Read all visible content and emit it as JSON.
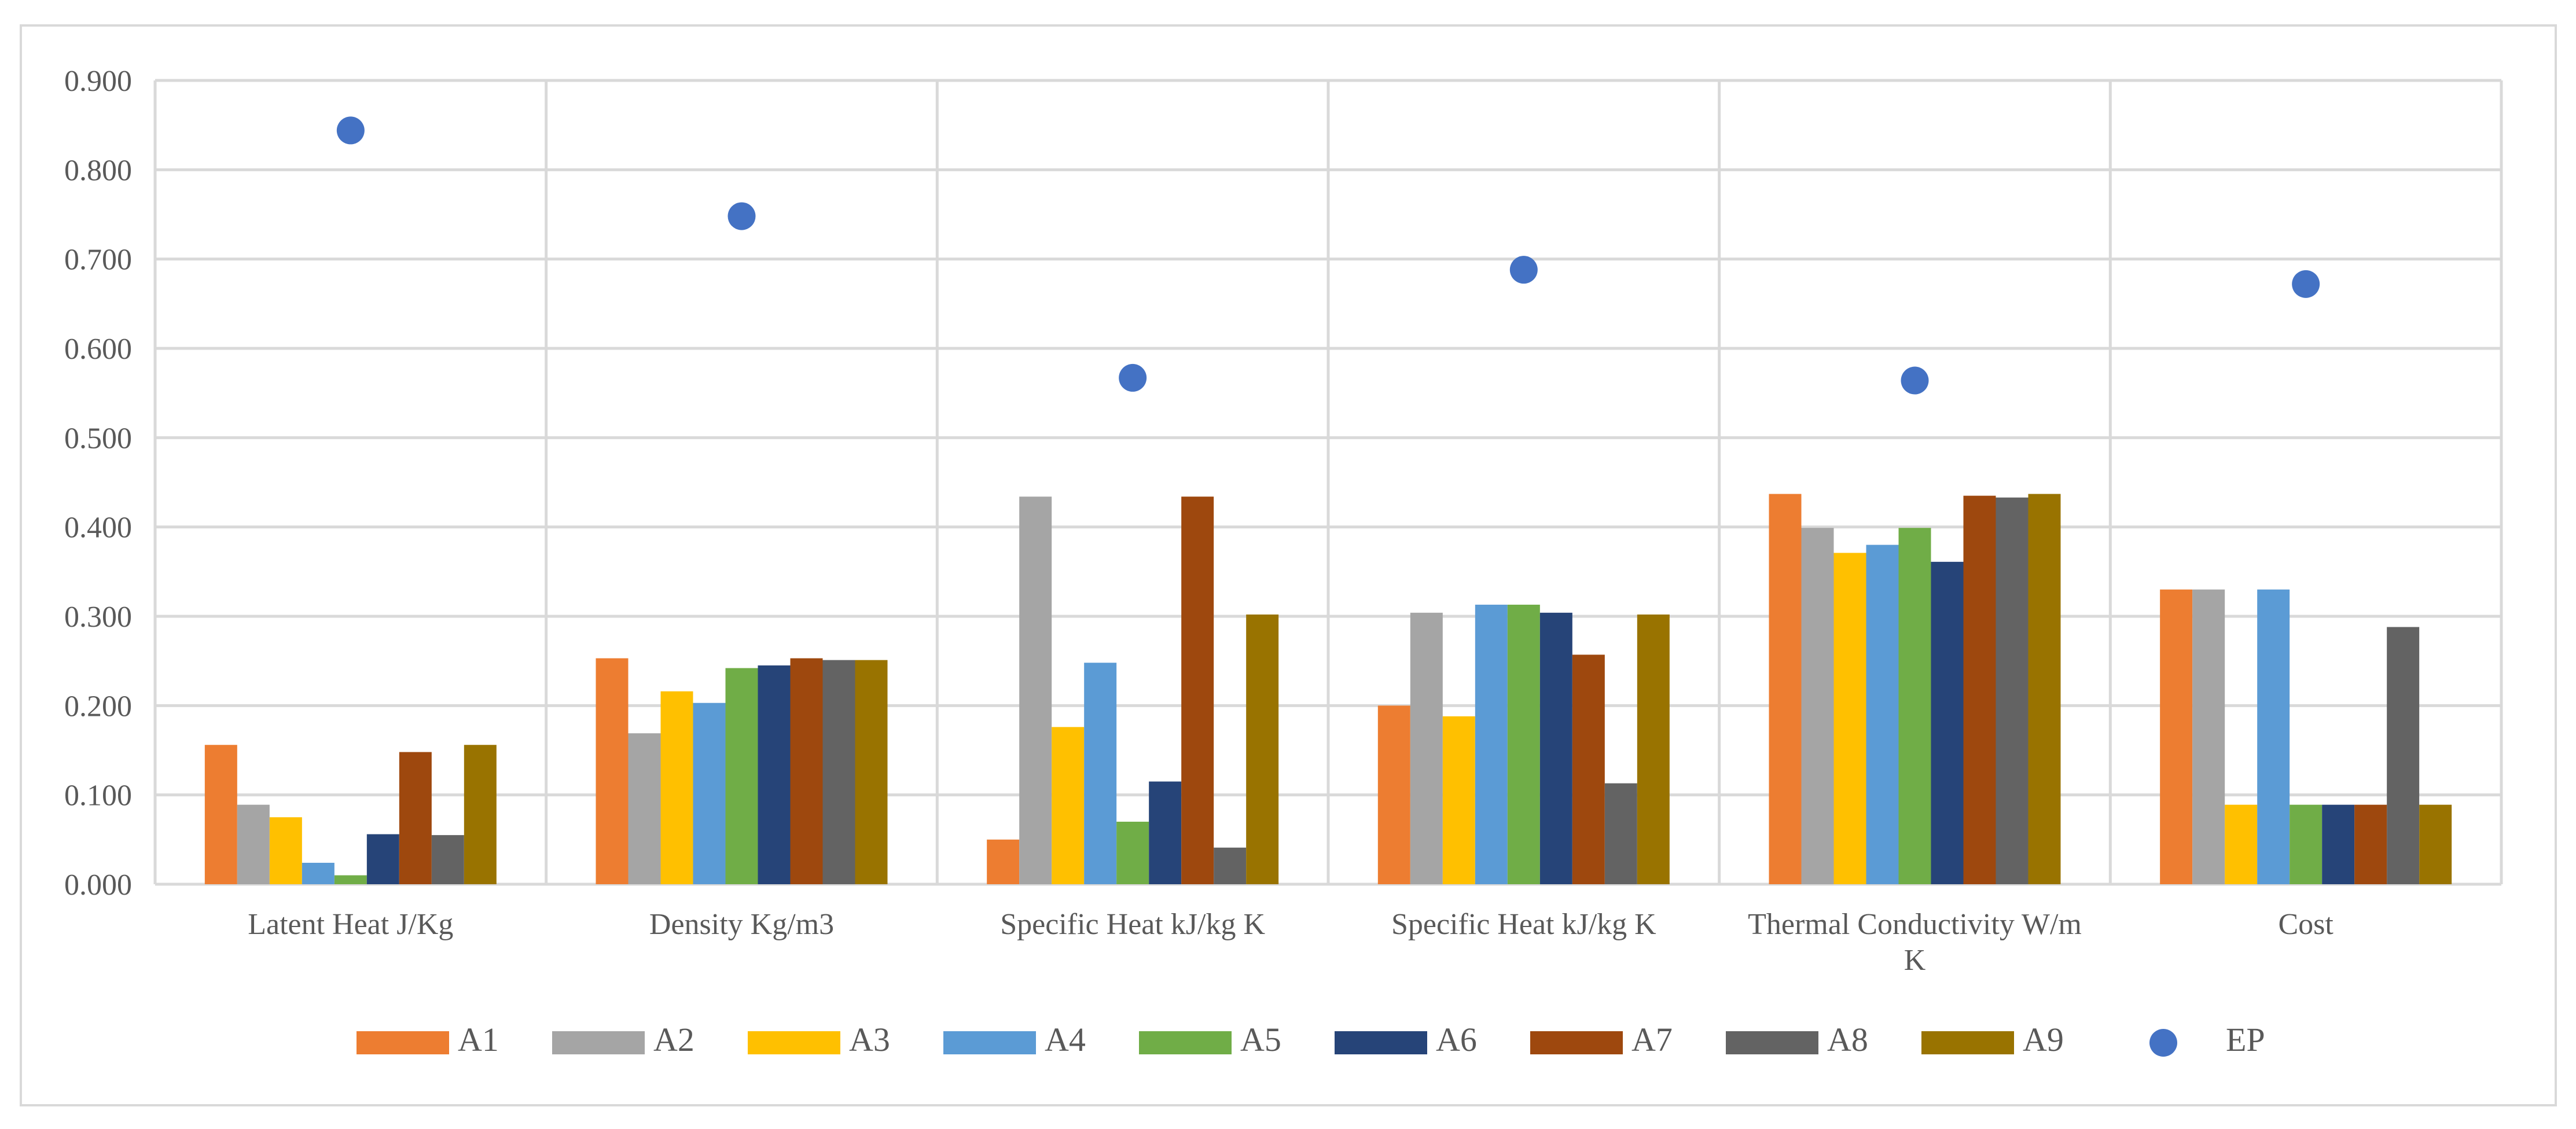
{
  "chart_data": {
    "type": "bar",
    "title": "",
    "xlabel": "",
    "ylabel": "",
    "ylim": [
      0,
      0.9
    ],
    "y_ticks": [
      "0.000",
      "0.100",
      "0.200",
      "0.300",
      "0.400",
      "0.500",
      "0.600",
      "0.700",
      "0.800",
      "0.900"
    ],
    "grid": true,
    "legend_position": "bottom",
    "categories": [
      [
        "Latent Heat J/Kg"
      ],
      [
        "Density Kg/m3"
      ],
      [
        "Specific Heat kJ/kg K"
      ],
      [
        "Specific Heat kJ/kg K"
      ],
      [
        "Thermal Conductivity W/m",
        "K"
      ],
      [
        "Cost"
      ]
    ],
    "series": [
      {
        "name": "A1",
        "color": "#ed7d31",
        "values": [
          0.156,
          0.253,
          0.05,
          0.2,
          0.437,
          0.33
        ]
      },
      {
        "name": "A2",
        "color": "#a5a5a5",
        "values": [
          0.089,
          0.169,
          0.434,
          0.304,
          0.399,
          0.33
        ]
      },
      {
        "name": "A3",
        "color": "#ffc000",
        "values": [
          0.075,
          0.216,
          0.176,
          0.188,
          0.371,
          0.089
        ]
      },
      {
        "name": "A4",
        "color": "#5b9bd5",
        "values": [
          0.024,
          0.203,
          0.248,
          0.313,
          0.38,
          0.33
        ]
      },
      {
        "name": "A5",
        "color": "#70ad47",
        "values": [
          0.01,
          0.242,
          0.07,
          0.313,
          0.399,
          0.089
        ]
      },
      {
        "name": "A6",
        "color": "#264478",
        "values": [
          0.056,
          0.245,
          0.115,
          0.304,
          0.361,
          0.089
        ]
      },
      {
        "name": "A7",
        "color": "#9e480e",
        "values": [
          0.148,
          0.253,
          0.434,
          0.257,
          0.435,
          0.089
        ]
      },
      {
        "name": "A8",
        "color": "#636363",
        "values": [
          0.055,
          0.251,
          0.041,
          0.113,
          0.433,
          0.288
        ]
      },
      {
        "name": "A9",
        "color": "#997300",
        "values": [
          0.156,
          0.251,
          0.302,
          0.302,
          0.437,
          0.089
        ]
      }
    ],
    "points": {
      "name": "EP",
      "color": "#4472c4",
      "values": [
        0.844,
        0.748,
        0.567,
        0.688,
        0.564,
        0.672
      ]
    }
  }
}
